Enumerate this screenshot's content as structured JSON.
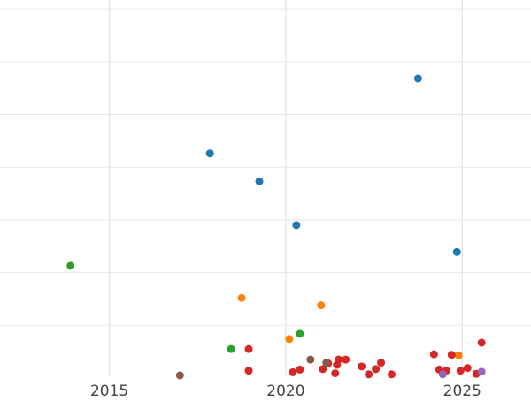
{
  "chart_data": {
    "type": "scatter",
    "title": "",
    "xlabel": "",
    "ylabel": "",
    "xlim": [
      2011.9,
      2026.95
    ],
    "ylim": [
      0.0,
      7.12
    ],
    "grid": true,
    "x_ticks": [
      2015,
      2020,
      2025
    ],
    "x_tick_labels": [
      "2015",
      "2020",
      "2025"
    ],
    "y_gridlines": [
      0.95,
      1.95,
      2.95,
      3.95,
      4.95,
      5.95,
      6.95
    ],
    "colors": {
      "blue": "#1f77b4",
      "orange": "#ff7f0e",
      "green": "#2ca02c",
      "red": "#d62728",
      "purple": "#9467bd",
      "brown": "#8c564b",
      "grid": "#e6e6e6",
      "tick_text": "#444444"
    },
    "series": [
      {
        "color": "blue",
        "points": [
          {
            "x": 2017.85,
            "y": 4.21
          },
          {
            "x": 2019.25,
            "y": 3.68
          },
          {
            "x": 2020.3,
            "y": 2.85
          },
          {
            "x": 2023.75,
            "y": 5.63
          },
          {
            "x": 2024.85,
            "y": 2.34
          }
        ]
      },
      {
        "color": "orange",
        "points": [
          {
            "x": 2018.75,
            "y": 1.47
          },
          {
            "x": 2020.1,
            "y": 0.69
          },
          {
            "x": 2021.0,
            "y": 1.33
          },
          {
            "x": 2024.9,
            "y": 0.38
          }
        ]
      },
      {
        "color": "green",
        "points": [
          {
            "x": 2013.9,
            "y": 2.08
          },
          {
            "x": 2018.45,
            "y": 0.5
          },
          {
            "x": 2020.4,
            "y": 0.79
          }
        ]
      },
      {
        "color": "red",
        "points": [
          {
            "x": 2018.95,
            "y": 0.5
          },
          {
            "x": 2018.95,
            "y": 0.09
          },
          {
            "x": 2020.2,
            "y": 0.06
          },
          {
            "x": 2020.4,
            "y": 0.11
          },
          {
            "x": 2021.05,
            "y": 0.12
          },
          {
            "x": 2021.2,
            "y": 0.23
          },
          {
            "x": 2021.4,
            "y": 0.04
          },
          {
            "x": 2021.45,
            "y": 0.2
          },
          {
            "x": 2021.5,
            "y": 0.3
          },
          {
            "x": 2021.7,
            "y": 0.3
          },
          {
            "x": 2022.15,
            "y": 0.17
          },
          {
            "x": 2022.35,
            "y": 0.02
          },
          {
            "x": 2022.55,
            "y": 0.12
          },
          {
            "x": 2022.7,
            "y": 0.24
          },
          {
            "x": 2023.0,
            "y": 0.02
          },
          {
            "x": 2024.2,
            "y": 0.4
          },
          {
            "x": 2024.35,
            "y": 0.11
          },
          {
            "x": 2024.55,
            "y": 0.09
          },
          {
            "x": 2024.7,
            "y": 0.39
          },
          {
            "x": 2024.95,
            "y": 0.09
          },
          {
            "x": 2025.15,
            "y": 0.14
          },
          {
            "x": 2025.4,
            "y": 0.03
          },
          {
            "x": 2025.55,
            "y": 0.62
          }
        ]
      },
      {
        "color": "purple",
        "points": [
          {
            "x": 2024.45,
            "y": 0.02
          },
          {
            "x": 2025.55,
            "y": 0.07
          }
        ]
      },
      {
        "color": "brown",
        "points": [
          {
            "x": 2017.0,
            "y": 0.0
          },
          {
            "x": 2020.7,
            "y": 0.3
          },
          {
            "x": 2021.15,
            "y": 0.24
          }
        ]
      }
    ]
  }
}
